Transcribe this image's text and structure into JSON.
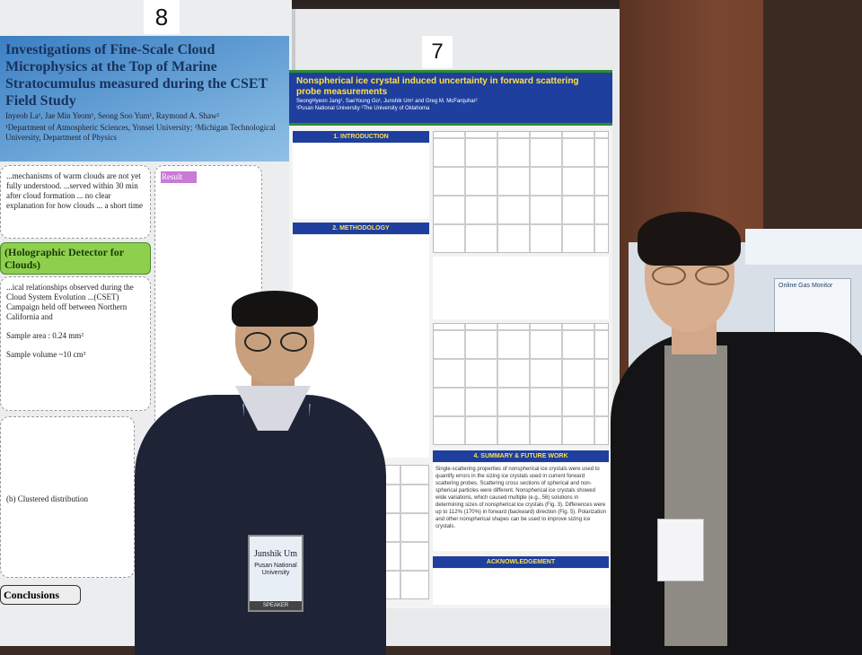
{
  "scene": {
    "description_tags": [
      "poster-session",
      "two-people",
      "scientific-posters"
    ]
  },
  "poster_8": {
    "number": "8",
    "title": "Investigations of Fine-Scale Cloud Microphysics at the Top of Marine Stratocumulus measured during the CSET Field Study",
    "authors": "Inyeob La¹, Jae Min Yeom¹, Seong Soo Yum¹, Raymond A. Shaw²",
    "affiliations": "¹Department of Atmospheric Sciences, Yonsei University; ²Michigan Technological University, Department of Physics",
    "intro_text": "...mechanisms of warm clouds are not yet fully understood. ...served within 30 min after cloud formation ... no clear explanation for how clouds ... a short time",
    "section_label": "(Holographic Detector for Clouds)",
    "section_text": "...ical relationships observed during the Cloud System Evolution ...(CSET) Campaign held off between Northern California and",
    "sample_area": "Sample area : 0.24 mm²",
    "sample_volume": "Sample volume ~10 cm³",
    "result_label": "Result",
    "clustered_label": "(b) Clustered distribution",
    "conclusions_label": "Conclusions"
  },
  "poster_7": {
    "number": "7",
    "title": "Nonspherical ice crystal induced uncertainty in forward scattering probe measurements",
    "authors": "SeongHyeon Jang¹, SaeYoung Go¹, Junshik Um¹ and Greg M. McFarquhar²",
    "affiliations": "¹Pusan National University  ²The University of Oklahoma",
    "sections": [
      "1. INTRODUCTION",
      "2. METHODOLOGY",
      "4. SUMMARY & FUTURE WORK",
      "ACKNOWLEDGEMENT"
    ],
    "summary_text": "Single-scattering properties of nonspherical ice crystals were used to quantify errors in the sizing ice crystals used in current forward scattering probes. Scattering cross sections of spherical and non-spherical particles were different. Nonspherical ice crystals showed wide variations, which caused multiple (e.g., 56) solutions in determining sizes of nonspherical ice crystals (Fig. 3). Differences were up to 112% (170%) in forward (backward) direction (Fig. 5). Polarization and other nonspherical shapes can be used to improve sizing ice crystals."
  },
  "badge": {
    "name": "Junshik Um",
    "affiliation": "Pusan National University",
    "role": "SPEAKER"
  },
  "booth": {
    "sign": "Online Gas Monitor"
  },
  "colors": {
    "poster_blue": "#1f3f9e",
    "poster_yellow": "#ffe04a",
    "poster_green": "#2d8b2e",
    "wood": "#7a4630"
  }
}
